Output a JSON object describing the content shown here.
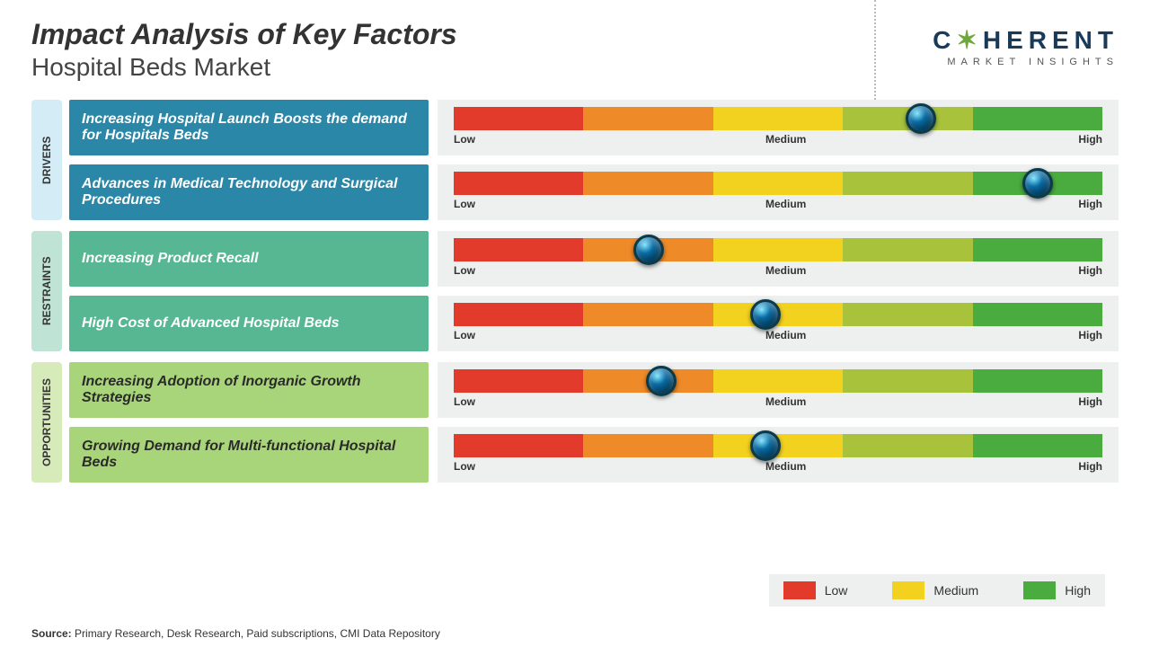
{
  "title": "Impact Analysis of Key Factors",
  "subtitle": "Hospital Beds Market",
  "logo": {
    "text": "COHERENT",
    "subtext": "MARKET INSIGHTS"
  },
  "scale": {
    "segment_colors": [
      "#e23b2b",
      "#ef8a28",
      "#f3d11f",
      "#a8c23c",
      "#4aab3f"
    ],
    "labels": {
      "low": "Low",
      "medium": "Medium",
      "high": "High"
    }
  },
  "categories": [
    {
      "name": "DRIVERS",
      "label_bg": "#d3ecf5",
      "factor_bg": "#2a87a8",
      "factor_text_color": "#ffffff",
      "items": [
        {
          "text": "Increasing Hospital Launch Boosts the demand for Hospitals Beds",
          "marker_pct": 72
        },
        {
          "text": "Advances in Medical Technology and Surgical Procedures",
          "marker_pct": 90
        }
      ]
    },
    {
      "name": "RESTRAINTS",
      "label_bg": "#bfe4d5",
      "factor_bg": "#57b792",
      "factor_text_color": "#ffffff",
      "items": [
        {
          "text": "Increasing Product Recall",
          "marker_pct": 30
        },
        {
          "text": "High Cost of Advanced Hospital Beds",
          "marker_pct": 48
        }
      ]
    },
    {
      "name": "OPPORTUNITIES",
      "label_bg": "#d6ebb9",
      "factor_bg": "#a9d57a",
      "factor_text_color": "#2a2a2a",
      "items": [
        {
          "text": "Increasing Adoption of Inorganic Growth Strategies",
          "marker_pct": 32
        },
        {
          "text": "Growing Demand for Multi-functional Hospital Beds",
          "marker_pct": 48
        }
      ]
    }
  ],
  "legend": [
    {
      "label": "Low",
      "color": "#e23b2b"
    },
    {
      "label": "Medium",
      "color": "#f3d11f"
    },
    {
      "label": "High",
      "color": "#4aab3f"
    }
  ],
  "source": {
    "label": "Source:",
    "text": " Primary Research, Desk Research, Paid subscriptions, CMI Data Repository"
  }
}
